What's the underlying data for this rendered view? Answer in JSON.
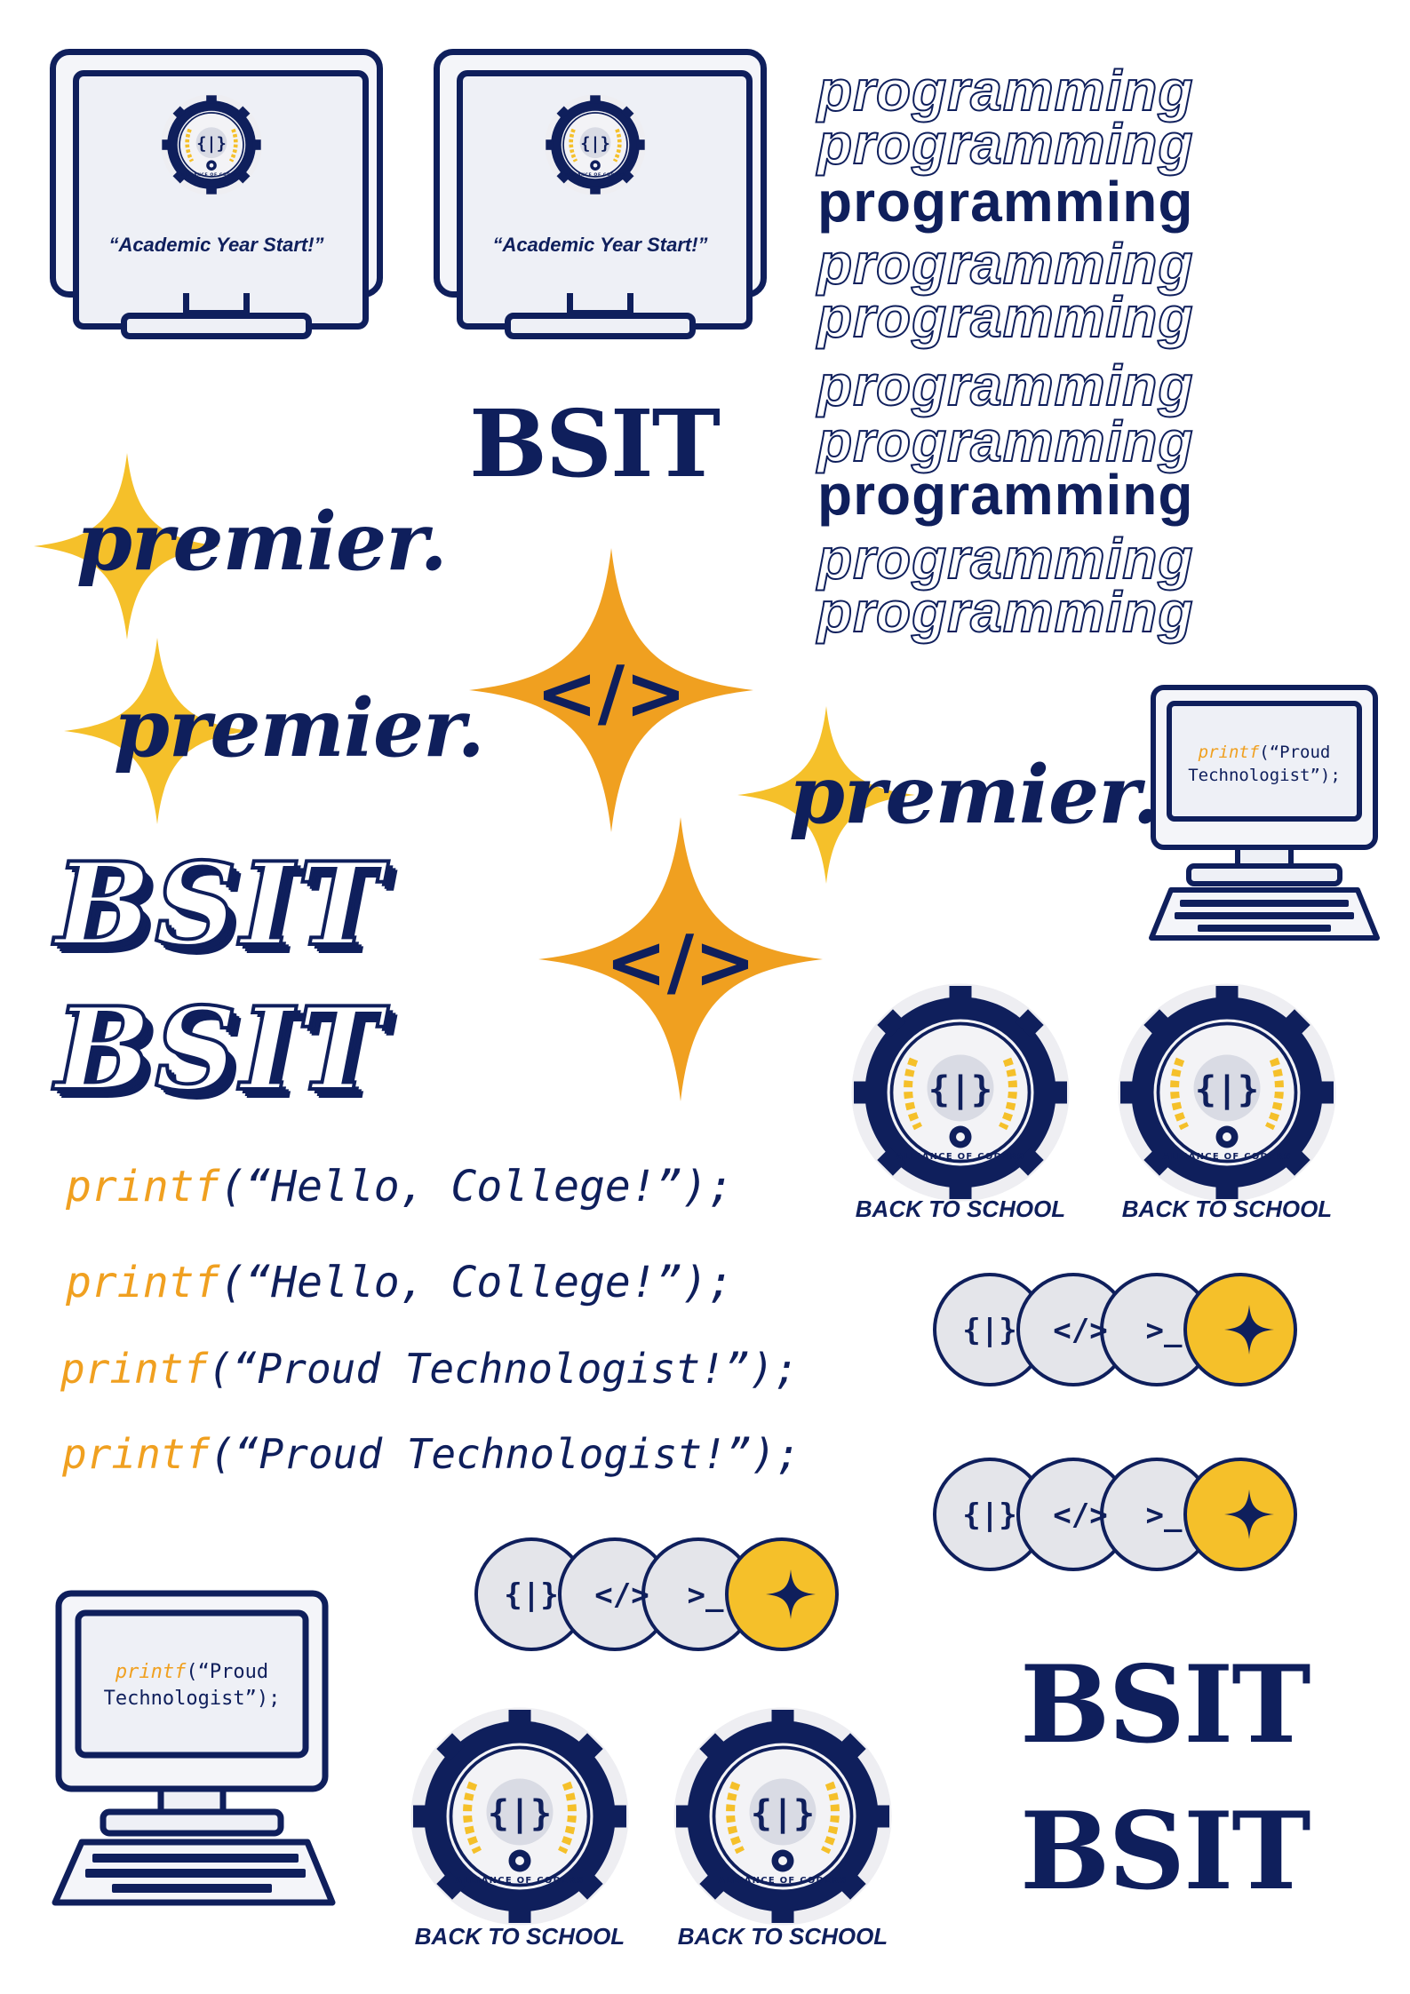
{
  "colors": {
    "navy": "#0f1f5c",
    "gold": "#f5c02a",
    "orange": "#f0a020",
    "light_gray": "#e4e5ea"
  },
  "monitors": [
    {
      "quote": "“Academic Year Start!”"
    },
    {
      "quote": "“Academic Year Start!”"
    }
  ],
  "programming": [
    "programming",
    "programming",
    "programming",
    "programming",
    "programming"
  ],
  "programming_block2": [
    "programming",
    "programming",
    "programming",
    "programming",
    "programming"
  ],
  "bsit": "BSIT",
  "premier": "premier.",
  "code_icon": "</>",
  "small_monitor": {
    "kw": "printf",
    "rest1": "(“Proud",
    "rest2": "Technologist”);"
  },
  "code_lines": [
    {
      "kw": "printf",
      "rest": "(“Hello, College!”);"
    },
    {
      "kw": "printf",
      "rest": "(“Hello, College!”);"
    },
    {
      "kw": "printf",
      "rest": "(“Proud Technologist!”);"
    },
    {
      "kw": "printf",
      "rest": "(“Proud Technologist!”);"
    }
  ],
  "badge": {
    "ring_text": "CEBU TECHNOLOGICAL UNIVERSITY DANAO CAMPUS",
    "bottom_text": "ALLIANCE OF CODERS",
    "label": "BACK TO SCHOOL"
  },
  "pill": {
    "icons": [
      "{|}",
      "</>",
      ">_"
    ]
  }
}
